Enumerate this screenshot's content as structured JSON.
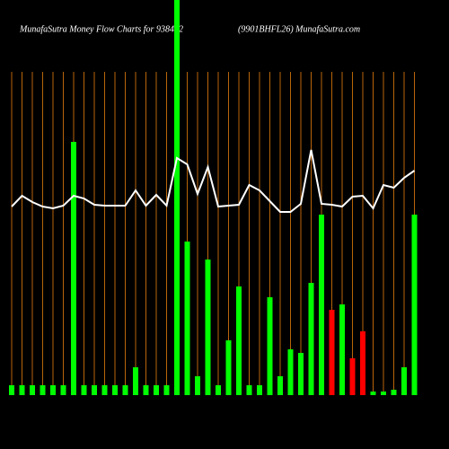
{
  "chart_data": {
    "type": "bar",
    "title": "MunafaSutra  Money Flow  Charts for 938482",
    "subtitle": "(9901BHFL26) MunafaSutra.com",
    "categories": [
      null,
      null,
      null,
      null,
      null,
      null,
      null,
      null,
      null,
      null,
      null,
      null,
      null,
      null,
      null,
      null,
      null,
      null,
      null,
      null,
      null,
      null,
      null,
      null,
      null,
      null,
      null,
      null,
      null,
      null,
      null,
      null,
      null,
      null,
      null,
      null,
      null,
      null,
      null,
      null
    ],
    "series": [
      {
        "type": "bar",
        "values": [
          11,
          11,
          11,
          11,
          11,
          11,
          282,
          11,
          11,
          11,
          11,
          11,
          31,
          11,
          11,
          11,
          440,
          171,
          21,
          151,
          11,
          61,
          121,
          11,
          11,
          109,
          21,
          51,
          47,
          125,
          201,
          95,
          101,
          41,
          71,
          4,
          4,
          6,
          31,
          201
        ],
        "colors": [
          "#00ff00",
          "#00ff00",
          "#00ff00",
          "#00ff00",
          "#00ff00",
          "#00ff00",
          "#00ff00",
          "#00ff00",
          "#00ff00",
          "#00ff00",
          "#00ff00",
          "#00ff00",
          "#00ff00",
          "#00ff00",
          "#00ff00",
          "#00ff00",
          "#00ff00",
          "#00ff00",
          "#00ff00",
          "#00ff00",
          "#00ff00",
          "#00ff00",
          "#00ff00",
          "#00ff00",
          "#00ff00",
          "#00ff00",
          "#00ff00",
          "#00ff00",
          "#00ff00",
          "#00ff00",
          "#00ff00",
          "#ff0000",
          "#00ff00",
          "#ff0000",
          "#ff0000",
          "#00ff00",
          "#00ff00",
          "#00ff00",
          "#00ff00",
          "#00ff00"
        ]
      },
      {
        "type": "line",
        "color": "#ffffff",
        "values": [
          210,
          222,
          215,
          210,
          208,
          211,
          222,
          219,
          212,
          211,
          211,
          211,
          228,
          211,
          223,
          211,
          264,
          257,
          224,
          254,
          210,
          211,
          212,
          234,
          228,
          216,
          204,
          204,
          213,
          273,
          213,
          212,
          210,
          221,
          222,
          208,
          234,
          231,
          242,
          250
        ]
      }
    ],
    "ylim": [
      0,
      440
    ],
    "divider_color": "#b8650a"
  }
}
